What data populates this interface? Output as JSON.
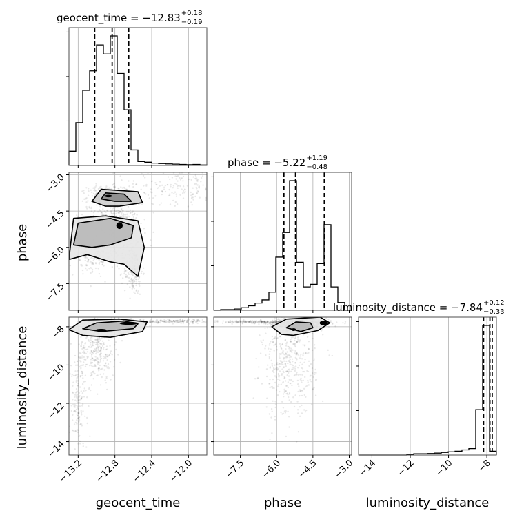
{
  "chart_data": {
    "type": "corner",
    "parameters": [
      "geocent_time",
      "phase",
      "luminosity_distance"
    ],
    "titles": [
      {
        "param": "geocent_time",
        "prefix": "geocent_time = ",
        "median": "−12.83",
        "upper": "+0.18",
        "lower": "−0.19"
      },
      {
        "param": "phase",
        "prefix": "phase = ",
        "median": "−5.22",
        "upper": "+1.19",
        "lower": "−0.48"
      },
      {
        "param": "luminosity_distance",
        "prefix": "luminosity_distance = ",
        "median": "−7.84",
        "upper": "+0.12",
        "lower": "−0.33"
      }
    ],
    "axes": {
      "geocent_time": {
        "range": [
          -13.3,
          -11.8
        ],
        "ticks": [
          -13.2,
          -12.8,
          -12.4,
          -12.0
        ],
        "tick_labels": [
          "−13.2",
          "−12.8",
          "−12.4",
          "−12.0"
        ]
      },
      "phase": {
        "range": [
          -8.6,
          -2.9
        ],
        "ticks": [
          -7.5,
          -6.0,
          -4.5,
          -3.0
        ],
        "tick_labels": [
          "−7.5",
          "−6.0",
          "−4.5",
          "−3.0"
        ]
      },
      "luminosity_distance": {
        "range": [
          -14.7,
          -7.5
        ],
        "ticks": [
          -14,
          -12,
          -10,
          -8
        ],
        "tick_labels": [
          "−14",
          "−12",
          "−10",
          "−8"
        ]
      }
    },
    "histograms": {
      "geocent_time": {
        "edges": [
          -13.3,
          -13.225,
          -13.15,
          -13.075,
          -13.0,
          -12.925,
          -12.85,
          -12.775,
          -12.7,
          -12.625,
          -12.55,
          -12.475,
          -12.4,
          -12.325,
          -12.25,
          -12.175,
          -12.1,
          -12.025,
          -11.95,
          -11.875,
          -11.8
        ],
        "counts": [
          0.11,
          0.33,
          0.58,
          0.73,
          0.93,
          0.86,
          1.0,
          0.71,
          0.43,
          0.12,
          0.03,
          0.025,
          0.018,
          0.015,
          0.012,
          0.01,
          0.008,
          0.006,
          0.008,
          0.004
        ],
        "quantiles": [
          -13.02,
          -12.83,
          -12.65
        ]
      },
      "phase": {
        "edges": [
          -8.6,
          -8.315,
          -8.03,
          -7.745,
          -7.46,
          -7.175,
          -6.89,
          -6.605,
          -6.32,
          -6.035,
          -5.75,
          -5.465,
          -5.18,
          -4.895,
          -4.61,
          -4.325,
          -4.04,
          -3.755,
          -3.47,
          -3.185,
          -2.9
        ],
        "counts": [
          0.0,
          0.005,
          0.005,
          0.01,
          0.02,
          0.035,
          0.055,
          0.08,
          0.14,
          0.41,
          0.6,
          1.0,
          0.37,
          0.18,
          0.2,
          0.36,
          0.66,
          0.18,
          0.06,
          0.0
        ],
        "quantiles": [
          -5.7,
          -5.22,
          -4.03
        ]
      },
      "luminosity_distance": {
        "edges": [
          -14.7,
          -14.34,
          -13.98,
          -13.62,
          -13.26,
          -12.9,
          -12.54,
          -12.18,
          -11.82,
          -11.46,
          -11.1,
          -10.74,
          -10.38,
          -10.02,
          -9.66,
          -9.3,
          -8.94,
          -8.58,
          -8.22,
          -7.86,
          -7.5
        ],
        "counts": [
          0.0,
          0.0,
          0.0,
          0.0,
          0.0,
          0.0,
          0.0,
          0.005,
          0.01,
          0.01,
          0.012,
          0.015,
          0.02,
          0.025,
          0.03,
          0.04,
          0.05,
          0.35,
          1.0,
          0.03
        ],
        "quantiles": [
          -8.17,
          -7.84,
          -7.72
        ]
      }
    },
    "scatter_clusters": {
      "phase_vs_geocent_time": [
        {
          "x": -12.83,
          "y": -5.3,
          "sx": 0.15,
          "sy": 0.55
        },
        {
          "x": -12.9,
          "y": -3.9,
          "sx": 0.1,
          "sy": 0.22
        },
        {
          "x": -12.6,
          "y": -7.0,
          "sx": 0.05,
          "sy": 0.5
        },
        {
          "x": -12.1,
          "y": -3.5,
          "sx": 0.35,
          "sy": 0.35
        },
        {
          "x": -13.05,
          "y": -6.4,
          "sx": 0.12,
          "sy": 0.3
        }
      ],
      "luminosity_distance_vs_geocent_time": [
        {
          "x": -12.85,
          "y": -7.95,
          "sx": 0.15,
          "sy": 0.15
        },
        {
          "x": -13.0,
          "y": -9.2,
          "sx": 0.1,
          "sy": 0.8
        },
        {
          "x": -13.2,
          "y": -12.0,
          "sx": 0.05,
          "sy": 1.3
        },
        {
          "x": -12.2,
          "y": -7.72,
          "sx": 0.4,
          "sy": 0.05
        }
      ],
      "luminosity_distance_vs_phase": [
        {
          "x": -5.0,
          "y": -7.9,
          "sx": 0.55,
          "sy": 0.15
        },
        {
          "x": -6.3,
          "y": -7.75,
          "sx": 1.2,
          "sy": 0.04
        },
        {
          "x": -5.5,
          "y": -10.0,
          "sx": 0.55,
          "sy": 1.4
        }
      ]
    },
    "contours": {
      "phase_vs_geocent_time": [
        [
          [
            -13.3,
            -6.5
          ],
          [
            -13.25,
            -4.8
          ],
          [
            -12.9,
            -4.7
          ],
          [
            -12.55,
            -4.9
          ],
          [
            -12.48,
            -6.0
          ],
          [
            -12.55,
            -7.2
          ],
          [
            -12.7,
            -6.7
          ],
          [
            -12.85,
            -6.6
          ],
          [
            -13.1,
            -6.3
          ]
        ],
        [
          [
            -13.25,
            -5.9
          ],
          [
            -13.2,
            -5.0
          ],
          [
            -12.85,
            -4.8
          ],
          [
            -12.6,
            -5.1
          ],
          [
            -12.62,
            -5.6
          ],
          [
            -12.85,
            -5.9
          ],
          [
            -13.05,
            -6.0
          ]
        ],
        [
          [
            -13.05,
            -4.1
          ],
          [
            -12.95,
            -3.6
          ],
          [
            -12.55,
            -3.7
          ],
          [
            -12.5,
            -4.15
          ],
          [
            -12.75,
            -4.3
          ],
          [
            -12.9,
            -4.3
          ]
        ],
        [
          [
            -12.95,
            -4.0
          ],
          [
            -12.9,
            -3.75
          ],
          [
            -12.7,
            -3.8
          ],
          [
            -12.62,
            -4.1
          ],
          [
            -12.8,
            -4.1
          ]
        ]
      ],
      "luminosity_distance_vs_geocent_time": [
        [
          [
            -13.3,
            -8.15
          ],
          [
            -13.15,
            -7.65
          ],
          [
            -12.75,
            -7.6
          ],
          [
            -12.45,
            -7.75
          ],
          [
            -12.5,
            -8.25
          ],
          [
            -12.85,
            -8.55
          ],
          [
            -13.15,
            -8.45
          ]
        ],
        [
          [
            -13.15,
            -8.1
          ],
          [
            -13.0,
            -7.8
          ],
          [
            -12.7,
            -7.7
          ],
          [
            -12.55,
            -7.85
          ],
          [
            -12.6,
            -8.1
          ],
          [
            -12.95,
            -8.25
          ]
        ]
      ],
      "luminosity_distance_vs_phase": [
        [
          [
            -6.2,
            -8.0
          ],
          [
            -5.6,
            -7.6
          ],
          [
            -4.2,
            -7.5
          ],
          [
            -3.8,
            -7.8
          ],
          [
            -4.3,
            -8.2
          ],
          [
            -5.3,
            -8.45
          ],
          [
            -5.8,
            -8.4
          ]
        ],
        [
          [
            -5.6,
            -8.05
          ],
          [
            -5.2,
            -7.75
          ],
          [
            -4.6,
            -7.8
          ],
          [
            -4.5,
            -8.05
          ],
          [
            -5.0,
            -8.25
          ]
        ]
      ]
    },
    "dense_spots": {
      "phase_vs_geocent_time": [
        {
          "x": -12.75,
          "y": -5.1,
          "rx": 0.035,
          "ry": 0.14
        },
        {
          "x": -12.87,
          "y": -3.88,
          "rx": 0.04,
          "ry": 0.05
        }
      ],
      "luminosity_distance_vs_geocent_time": [
        {
          "x": -12.65,
          "y": -7.82,
          "rx": 0.1,
          "ry": 0.08
        },
        {
          "x": -12.95,
          "y": -8.18,
          "rx": 0.06,
          "ry": 0.07
        }
      ],
      "luminosity_distance_vs_phase": [
        {
          "x": -4.05,
          "y": -7.8,
          "rx": 0.17,
          "ry": 0.12
        },
        {
          "x": -5.3,
          "y": -8.15,
          "rx": 0.1,
          "ry": 0.07
        }
      ]
    },
    "style": {
      "line_color": "#000000",
      "grid_color": "#b0b0b0",
      "scatter_color": "#000000"
    },
    "grid": true
  }
}
